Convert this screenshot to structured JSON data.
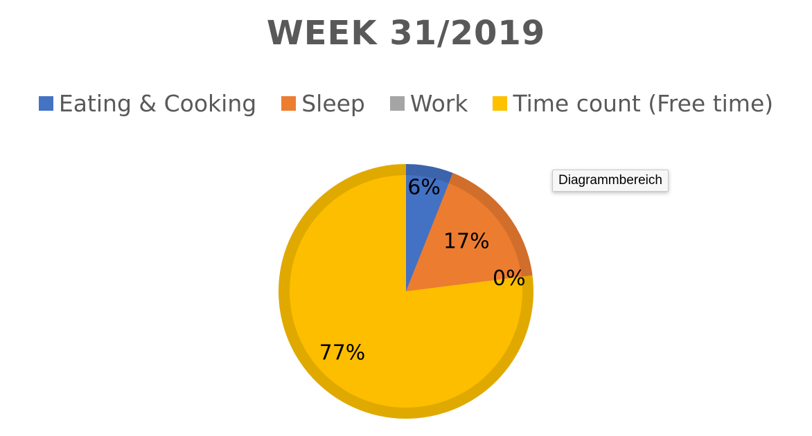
{
  "chart_data": {
    "type": "pie",
    "title": "WEEK 31/2019",
    "categories": [
      "Eating & Cooking",
      "Sleep",
      "Work",
      "Time count (Free time)"
    ],
    "values": [
      6,
      17,
      0,
      77
    ],
    "data_labels": [
      "6%",
      "17%",
      "0%",
      "77%"
    ],
    "colors": [
      "#4472c4",
      "#ed7d31",
      "#a5a5a5",
      "#ffc000"
    ],
    "legend_position": "top"
  },
  "tooltip": {
    "text": "Diagrammbereich"
  }
}
